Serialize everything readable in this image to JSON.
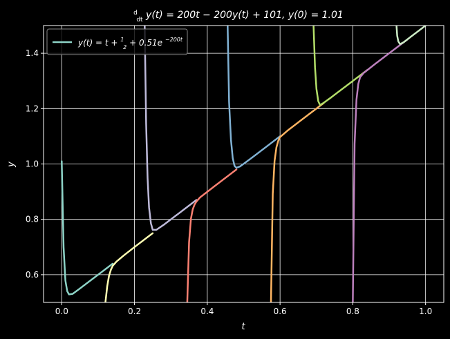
{
  "chart_data": {
    "type": "line",
    "title": "d/dt y(t) = 200t − 200y(t) + 101, y(0) = 1.01",
    "title_parts": {
      "deriv_num": "d",
      "deriv_den": "dt",
      "rhs": "y(t) = 200t − 200y(t) + 101, y(0) = 1.01"
    },
    "xlabel": "t",
    "ylabel": "y",
    "xlim": [
      -0.05,
      1.05
    ],
    "ylim": [
      0.5,
      1.5
    ],
    "xticks": [
      0.0,
      0.2,
      0.4,
      0.6,
      0.8,
      1.0
    ],
    "xtick_labels": [
      "0.0",
      "0.2",
      "0.4",
      "0.6",
      "0.8",
      "1.0"
    ],
    "yticks": [
      0.6,
      0.8,
      1.0,
      1.2,
      1.4
    ],
    "ytick_labels": [
      "0.6",
      "0.8",
      "1.0",
      "1.2",
      "1.4"
    ],
    "grid": true,
    "legend": {
      "placement": "top-left",
      "label_lhs": "y(t) = t + ",
      "frac_num": "1",
      "frac_den": "2",
      "label_mid": " + 0.51e",
      "exponent": "−200t"
    },
    "background": "#000000",
    "series": [
      {
        "name": "y(t) = t + 1/2 + 0.51e^(−200t)",
        "color": "#8dd3c7",
        "x": [
          0.0,
          0.005,
          0.01,
          0.015,
          0.02,
          0.03,
          0.05,
          0.08,
          0.12,
          0.14
        ],
        "y": [
          1.01,
          0.699,
          0.579,
          0.541,
          0.529,
          0.531,
          0.55,
          0.58,
          0.62,
          0.64
        ]
      },
      {
        "color": "#ffffb3",
        "x": [
          0.12,
          0.125,
          0.13,
          0.135,
          0.14,
          0.15,
          0.17,
          0.2,
          0.25
        ],
        "y": [
          0.5,
          0.558,
          0.596,
          0.618,
          0.632,
          0.647,
          0.669,
          0.7,
          0.75
        ]
      },
      {
        "color": "#bebada",
        "x": [
          0.228,
          0.232,
          0.236,
          0.24,
          0.245,
          0.25,
          0.26,
          0.28,
          0.32,
          0.37
        ],
        "y": [
          1.5,
          1.147,
          0.949,
          0.844,
          0.786,
          0.762,
          0.762,
          0.78,
          0.82,
          0.87
        ]
      },
      {
        "color": "#fb8072",
        "x": [
          0.345,
          0.35,
          0.355,
          0.36,
          0.365,
          0.37,
          0.38,
          0.42,
          0.48
        ],
        "y": [
          0.5,
          0.717,
          0.802,
          0.836,
          0.853,
          0.864,
          0.879,
          0.92,
          0.98
        ]
      },
      {
        "color": "#80b1d3",
        "x": [
          0.456,
          0.46,
          0.465,
          0.47,
          0.475,
          0.48,
          0.49,
          0.52,
          0.6
        ],
        "y": [
          1.5,
          1.224,
          1.088,
          1.021,
          0.993,
          0.986,
          0.991,
          1.02,
          1.1
        ]
      },
      {
        "color": "#fdb462",
        "x": [
          0.575,
          0.58,
          0.585,
          0.59,
          0.595,
          0.6,
          0.62,
          0.66,
          0.72
        ],
        "y": [
          0.5,
          0.892,
          1.011,
          1.06,
          1.083,
          1.097,
          1.12,
          1.16,
          1.22
        ]
      },
      {
        "color": "#b3de69",
        "x": [
          0.692,
          0.696,
          0.7,
          0.705,
          0.71,
          0.72,
          0.74,
          0.78,
          0.84
        ],
        "y": [
          1.5,
          1.35,
          1.271,
          1.227,
          1.213,
          1.221,
          1.24,
          1.28,
          1.34
        ]
      },
      {
        "color": "#bc80bd",
        "x": [
          0.8,
          0.805,
          0.81,
          0.815,
          0.82,
          0.83,
          0.86,
          0.9,
          0.95
        ],
        "y": [
          0.5,
          1.073,
          1.232,
          1.289,
          1.313,
          1.329,
          1.36,
          1.4,
          1.45
        ]
      },
      {
        "color": "#ccebc5",
        "x": [
          0.92,
          0.922,
          0.925,
          0.93,
          0.94,
          0.96,
          1.0
        ],
        "y": [
          1.5,
          1.463,
          1.443,
          1.433,
          1.44,
          1.46,
          1.5
        ]
      }
    ]
  }
}
